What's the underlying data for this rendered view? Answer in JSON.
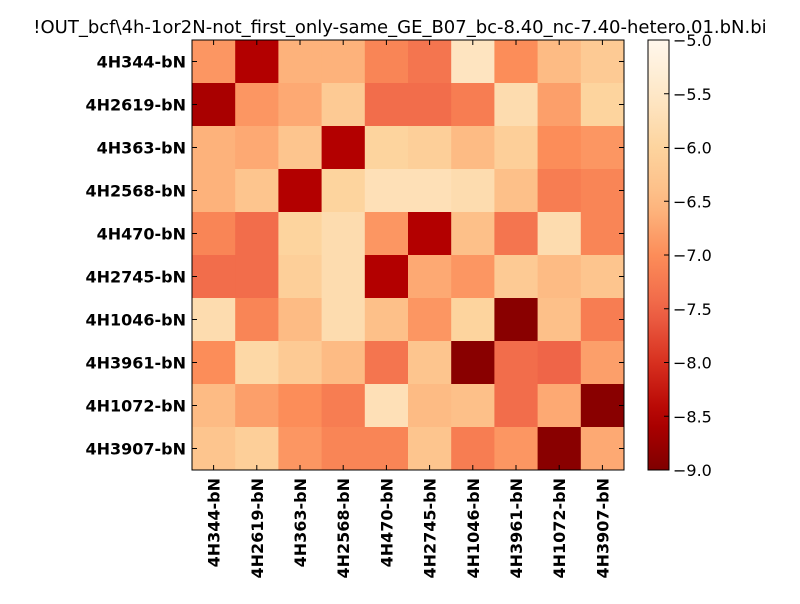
{
  "chart_data": {
    "type": "heatmap",
    "title": "!OUT_bcf\\4h-1or2N-not_first_only-same_GE_B07_bc-8.40_nc-7.40-hetero.01.bN.bi",
    "xlabel": "",
    "ylabel": "",
    "row_labels": [
      "4H344-bN",
      "4H2619-bN",
      "4H363-bN",
      "4H2568-bN",
      "4H470-bN",
      "4H2745-bN",
      "4H1046-bN",
      "4H3961-bN",
      "4H1072-bN",
      "4H3907-bN"
    ],
    "col_labels": [
      "4H344-bN",
      "4H2619-bN",
      "4H363-bN",
      "4H2568-bN",
      "4H470-bN",
      "4H2745-bN",
      "4H1046-bN",
      "4H3961-bN",
      "4H1072-bN",
      "4H3907-bN"
    ],
    "values": [
      [
        -6.9,
        -8.5,
        -6.6,
        -6.6,
        -7.1,
        -7.3,
        -5.6,
        -7.0,
        -6.5,
        -6.2
      ],
      [
        -8.6,
        -6.9,
        -6.7,
        -6.2,
        -7.4,
        -7.4,
        -7.2,
        -5.8,
        -6.8,
        -6.0
      ],
      [
        -6.6,
        -6.7,
        -6.3,
        -8.5,
        -6.0,
        -6.1,
        -6.5,
        -6.1,
        -7.0,
        -6.9
      ],
      [
        -6.6,
        -6.3,
        -8.5,
        -6.0,
        -5.7,
        -5.7,
        -5.8,
        -6.4,
        -7.2,
        -7.1
      ],
      [
        -7.1,
        -7.4,
        -6.0,
        -5.8,
        -6.9,
        -8.5,
        -6.4,
        -7.3,
        -5.8,
        -7.1
      ],
      [
        -7.4,
        -7.4,
        -6.1,
        -5.8,
        -8.5,
        -6.7,
        -6.9,
        -6.2,
        -6.5,
        -6.3
      ],
      [
        -5.8,
        -7.1,
        -6.5,
        -5.8,
        -6.4,
        -6.9,
        -6.0,
        -8.9,
        -6.4,
        -7.2
      ],
      [
        -7.0,
        -5.9,
        -6.2,
        -6.5,
        -7.3,
        -6.3,
        -8.9,
        -7.4,
        -7.5,
        -6.8
      ],
      [
        -6.5,
        -6.8,
        -7.0,
        -7.2,
        -5.7,
        -6.5,
        -6.4,
        -7.4,
        -6.7,
        -8.9
      ],
      [
        -6.3,
        -6.1,
        -6.9,
        -7.1,
        -7.1,
        -6.3,
        -7.2,
        -6.9,
        -8.9,
        -6.7
      ]
    ],
    "colormap": "OrRd_r",
    "colorbar": {
      "min": -9.0,
      "max": -5.0,
      "tick_labels": [
        "−5.0",
        "−5.5",
        "−6.0",
        "−6.5",
        "−7.0",
        "−7.5",
        "−8.0",
        "−8.5",
        "−9.0"
      ],
      "tick_values": [
        -5.0,
        -5.5,
        -6.0,
        -6.5,
        -7.0,
        -7.5,
        -8.0,
        -8.5,
        -9.0
      ]
    },
    "grid": false,
    "legend": "colorbar-right"
  }
}
